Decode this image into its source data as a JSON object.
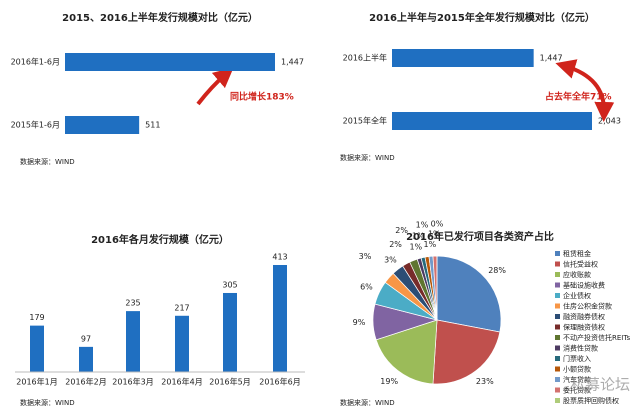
{
  "chart_data": [
    {
      "type": "hbar",
      "title": "2015、2016上半年发行规模对比（亿元）",
      "categories": [
        "2016年1-6月",
        "2015年1-6月"
      ],
      "values": [
        1447,
        511
      ],
      "value_labels": [
        "1,447",
        "511"
      ],
      "color": "#1f6fc1",
      "annotation": "同比增长183%",
      "note": "数据来源：WIND"
    },
    {
      "type": "hbar",
      "title": "2016上半年与2015年全年发行规模对比（亿元）",
      "categories": [
        "2016上半年",
        "2015年全年"
      ],
      "values": [
        1447,
        2043
      ],
      "value_labels": [
        "1,447",
        "2,043"
      ],
      "color": "#1f6fc1",
      "annotation": "占去年全年71%",
      "note": "数据来源：WIND"
    },
    {
      "type": "bar",
      "title": "2016年各月发行规模（亿元）",
      "categories": [
        "2016年1月",
        "2016年2月",
        "2016年3月",
        "2016年4月",
        "2016年5月",
        "2016年6月"
      ],
      "values": [
        179,
        97,
        235,
        217,
        305,
        413
      ],
      "color": "#1f6fc1",
      "note": "数据来源：WIND"
    },
    {
      "type": "pie",
      "title": "2016年已发行项目各类资产占比",
      "categories": [
        "租赁租金",
        "信托受益权",
        "应收账款",
        "基础设施收费",
        "企业债权",
        "住房公积金贷款",
        "融资融券债权",
        "保理融资债权",
        "不动产投资信托REITs",
        "消费性贷款",
        "门票收入",
        "小额贷款",
        "汽车贷款",
        "委托贷款",
        "股票质押回购债权"
      ],
      "values": [
        28,
        23,
        19,
        9,
        6,
        3,
        3,
        2,
        2,
        1,
        1,
        1,
        1,
        1,
        0
      ],
      "value_labels": [
        "28%",
        "23%",
        "19%",
        "9%",
        "6%",
        "3%",
        "3%",
        "2%",
        "2%",
        "1%",
        "1%",
        "1%",
        "1%",
        "1%",
        "0%"
      ],
      "colors": [
        "#4f81bd",
        "#c0504d",
        "#9bbb59",
        "#8064a2",
        "#4bacc6",
        "#f79646",
        "#2c4d75",
        "#772c2a",
        "#5f7530",
        "#4d3b62",
        "#276a7c",
        "#b65708",
        "#729aca",
        "#d3716e",
        "#afcc7a"
      ],
      "note": "数据来源：WIND",
      "watermark": "私募论坛"
    }
  ]
}
